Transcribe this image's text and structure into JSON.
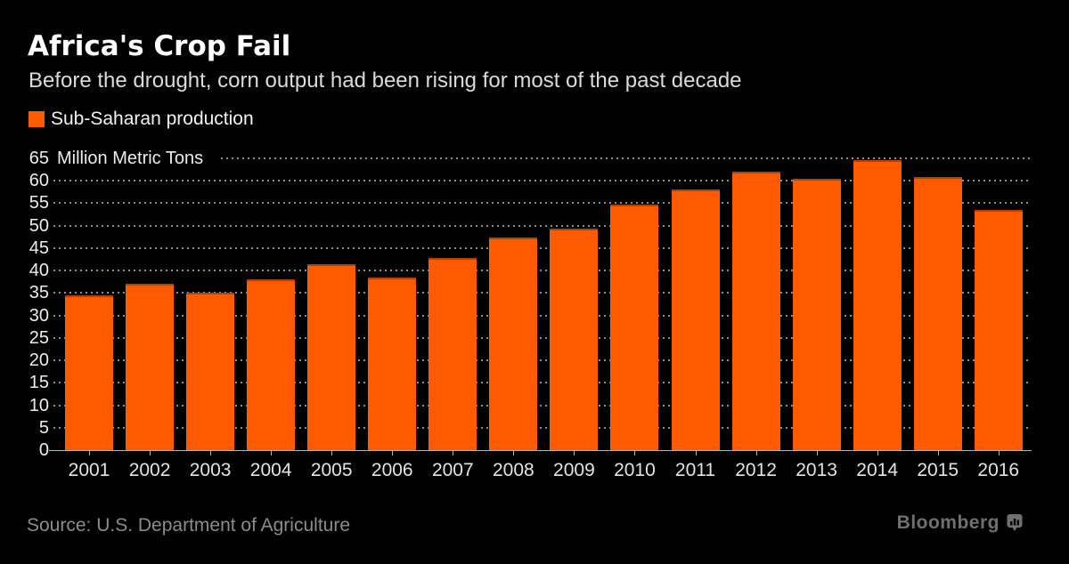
{
  "header": {
    "title": "Africa's Crop Fail",
    "subtitle": "Before the drought, corn output had been rising for most of the past decade"
  },
  "legend": {
    "label": "Sub-Saharan production",
    "swatch_color": "#ff5a00"
  },
  "footer": {
    "source": "Source: U.S. Department of Agriculture",
    "brand": "Bloomberg",
    "brand_icon": "chart-speech-bubble-icon"
  },
  "chart_data": {
    "type": "bar",
    "title": "Africa's Crop Fail",
    "subtitle": "Before the drought, corn output had been rising for most of the past decade",
    "categories": [
      "2001",
      "2002",
      "2003",
      "2004",
      "2005",
      "2006",
      "2007",
      "2008",
      "2009",
      "2010",
      "2011",
      "2012",
      "2013",
      "2014",
      "2015",
      "2016"
    ],
    "series": [
      {
        "name": "Sub-Saharan production",
        "values": [
          34.5,
          37.1,
          35.1,
          38.1,
          41.4,
          38.5,
          42.8,
          47.3,
          49.3,
          54.7,
          58,
          62,
          60.4,
          64.5,
          60.8,
          53.4
        ]
      }
    ],
    "xlabel": "",
    "ylabel": "Million Metric Tons",
    "ylim": [
      0,
      65
    ],
    "yticks": [
      0,
      5,
      10,
      15,
      20,
      25,
      30,
      35,
      40,
      45,
      50,
      55,
      60,
      65
    ],
    "grid": "horizontal-dotted",
    "legend_position": "top-left",
    "colors": {
      "bar": "#ff5a00",
      "bar_top_edge": "#b34300",
      "background": "#000000",
      "grid": "#8f8f8f",
      "axis_line": "#b3b3b3",
      "tick_label": "#ededed"
    }
  }
}
